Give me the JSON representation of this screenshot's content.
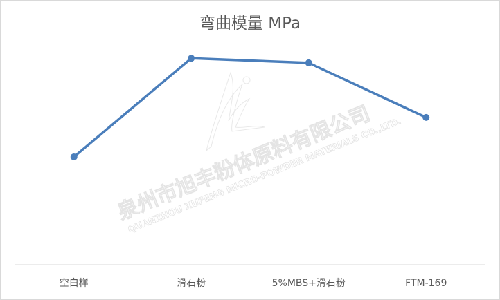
{
  "chart_data": {
    "type": "line",
    "title": "弯曲模量 MPa",
    "categories": [
      "空白样",
      "滑石粉",
      "5%MBS+滑石粉",
      "FTM-169"
    ],
    "series": [
      {
        "values": [
          1640,
          3140,
          3070,
          2240
        ],
        "color": "#4a7ebb"
      }
    ],
    "xlabel": "",
    "ylabel": "",
    "ylim": [
      0,
      3500
    ],
    "y_axis_shown": false,
    "grid": false,
    "legend": "none",
    "markers": "circle"
  },
  "watermark": {
    "company_cn": "泉州市旭丰粉体原料有限公司",
    "company_en": "QUANZHOU XUFENG MICRO-POWDER MATERIALS CO.,LTD."
  }
}
